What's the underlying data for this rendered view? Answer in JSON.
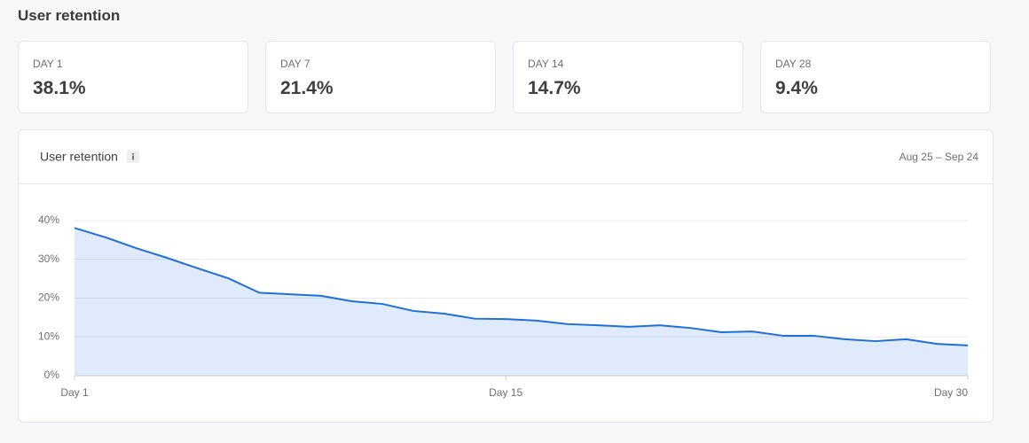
{
  "header": {
    "title": "User retention"
  },
  "cards": [
    {
      "label": "DAY 1",
      "value": "38.1%"
    },
    {
      "label": "DAY 7",
      "value": "21.4%"
    },
    {
      "label": "DAY 14",
      "value": "14.7%"
    },
    {
      "label": "DAY 28",
      "value": "9.4%"
    }
  ],
  "chart_data": {
    "type": "area",
    "title": "User retention",
    "date_range": "Aug 25 – Sep 24",
    "categories": [
      "Day 1",
      null,
      null,
      null,
      null,
      null,
      null,
      null,
      null,
      null,
      null,
      null,
      null,
      null,
      "Day 15",
      null,
      null,
      null,
      null,
      null,
      null,
      null,
      null,
      null,
      null,
      null,
      null,
      null,
      null,
      "Day 30"
    ],
    "values": [
      38.1,
      35.7,
      32.9,
      30.4,
      27.7,
      25.1,
      21.4,
      21.0,
      20.6,
      19.2,
      18.5,
      16.7,
      16.0,
      14.7,
      14.6,
      14.2,
      13.3,
      13.0,
      12.6,
      13.0,
      12.3,
      11.2,
      11.4,
      10.3,
      10.3,
      9.4,
      8.9,
      9.4,
      8.2,
      7.8
    ],
    "color": "#1f6fd9",
    "ylim": [
      0,
      40
    ],
    "yticks": [
      {
        "value": 0,
        "label": "0%"
      },
      {
        "value": 10,
        "label": "10%"
      },
      {
        "value": 20,
        "label": "20%"
      },
      {
        "value": 30,
        "label": "30%"
      },
      {
        "value": 40,
        "label": "40%"
      }
    ],
    "grid": true
  }
}
